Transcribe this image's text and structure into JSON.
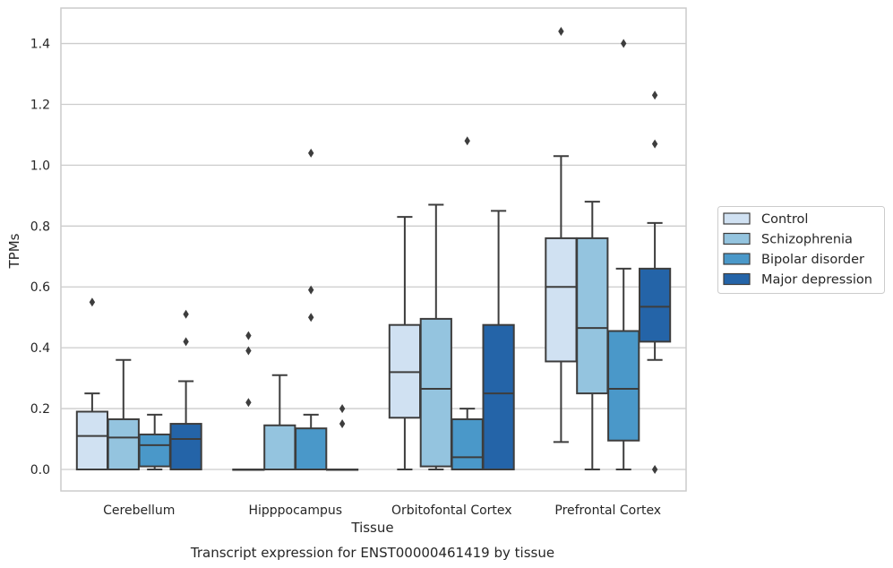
{
  "chart_data": {
    "type": "boxplot",
    "title": "Transcript expression for ENST00000461419 by tissue",
    "xlabel": "Tissue",
    "ylabel": "TPMs",
    "ylim": [
      -0.07,
      1.52
    ],
    "yticks": [
      0.0,
      0.2,
      0.4,
      0.6,
      0.8,
      1.0,
      1.2,
      1.4
    ],
    "ytick_labels": [
      "0.0",
      "0.2",
      "0.4",
      "0.6",
      "0.8",
      "1.0",
      "1.2",
      "1.4"
    ],
    "categories": [
      "Cerebellum",
      "Hipppocampus",
      "Orbitofontal Cortex",
      "Prefrontal Cortex"
    ],
    "grid": "horizontal",
    "legend_position": "right",
    "series": [
      {
        "name": "Control",
        "color": "#d0e1f2",
        "boxes": [
          {
            "whislo": 0.0,
            "q1": 0.0,
            "med": 0.11,
            "q3": 0.19,
            "whishi": 0.25,
            "fliers": [
              0.55
            ]
          },
          {
            "whislo": 0.0,
            "q1": 0.0,
            "med": 0.0,
            "q3": 0.0,
            "whishi": 0.0,
            "fliers": [
              0.44,
              0.39,
              0.22
            ]
          },
          {
            "whislo": 0.0,
            "q1": 0.17,
            "med": 0.32,
            "q3": 0.475,
            "whishi": 0.83,
            "fliers": []
          },
          {
            "whislo": 0.09,
            "q1": 0.355,
            "med": 0.6,
            "q3": 0.76,
            "whishi": 1.03,
            "fliers": [
              1.44
            ]
          }
        ]
      },
      {
        "name": "Schizophrenia",
        "color": "#94c4df",
        "boxes": [
          {
            "whislo": 0.0,
            "q1": 0.0,
            "med": 0.105,
            "q3": 0.165,
            "whishi": 0.36,
            "fliers": []
          },
          {
            "whislo": 0.0,
            "q1": 0.0,
            "med": 0.0,
            "q3": 0.145,
            "whishi": 0.31,
            "fliers": []
          },
          {
            "whislo": 0.0,
            "q1": 0.01,
            "med": 0.265,
            "q3": 0.495,
            "whishi": 0.87,
            "fliers": []
          },
          {
            "whislo": 0.0,
            "q1": 0.25,
            "med": 0.465,
            "q3": 0.76,
            "whishi": 0.88,
            "fliers": []
          }
        ]
      },
      {
        "name": "Bipolar disorder",
        "color": "#4a98c9",
        "boxes": [
          {
            "whislo": 0.0,
            "q1": 0.01,
            "med": 0.08,
            "q3": 0.115,
            "whishi": 0.18,
            "fliers": []
          },
          {
            "whislo": 0.0,
            "q1": 0.0,
            "med": 0.0,
            "q3": 0.135,
            "whishi": 0.18,
            "fliers": [
              1.04,
              0.59,
              0.5
            ]
          },
          {
            "whislo": 0.0,
            "q1": 0.0,
            "med": 0.04,
            "q3": 0.165,
            "whishi": 0.2,
            "fliers": [
              1.08
            ]
          },
          {
            "whislo": 0.0,
            "q1": 0.095,
            "med": 0.265,
            "q3": 0.455,
            "whishi": 0.66,
            "fliers": [
              1.4
            ]
          }
        ]
      },
      {
        "name": "Major depression",
        "color": "#2464a8",
        "boxes": [
          {
            "whislo": 0.0,
            "q1": 0.0,
            "med": 0.1,
            "q3": 0.15,
            "whishi": 0.29,
            "fliers": [
              0.51,
              0.42
            ]
          },
          {
            "whislo": 0.0,
            "q1": 0.0,
            "med": 0.0,
            "q3": 0.0,
            "whishi": 0.0,
            "fliers": [
              0.2,
              0.15
            ]
          },
          {
            "whislo": 0.0,
            "q1": 0.0,
            "med": 0.25,
            "q3": 0.475,
            "whishi": 0.85,
            "fliers": []
          },
          {
            "whislo": 0.36,
            "q1": 0.42,
            "med": 0.535,
            "q3": 0.66,
            "whishi": 0.81,
            "fliers": [
              1.23,
              1.07,
              0.0
            ]
          }
        ]
      }
    ]
  }
}
